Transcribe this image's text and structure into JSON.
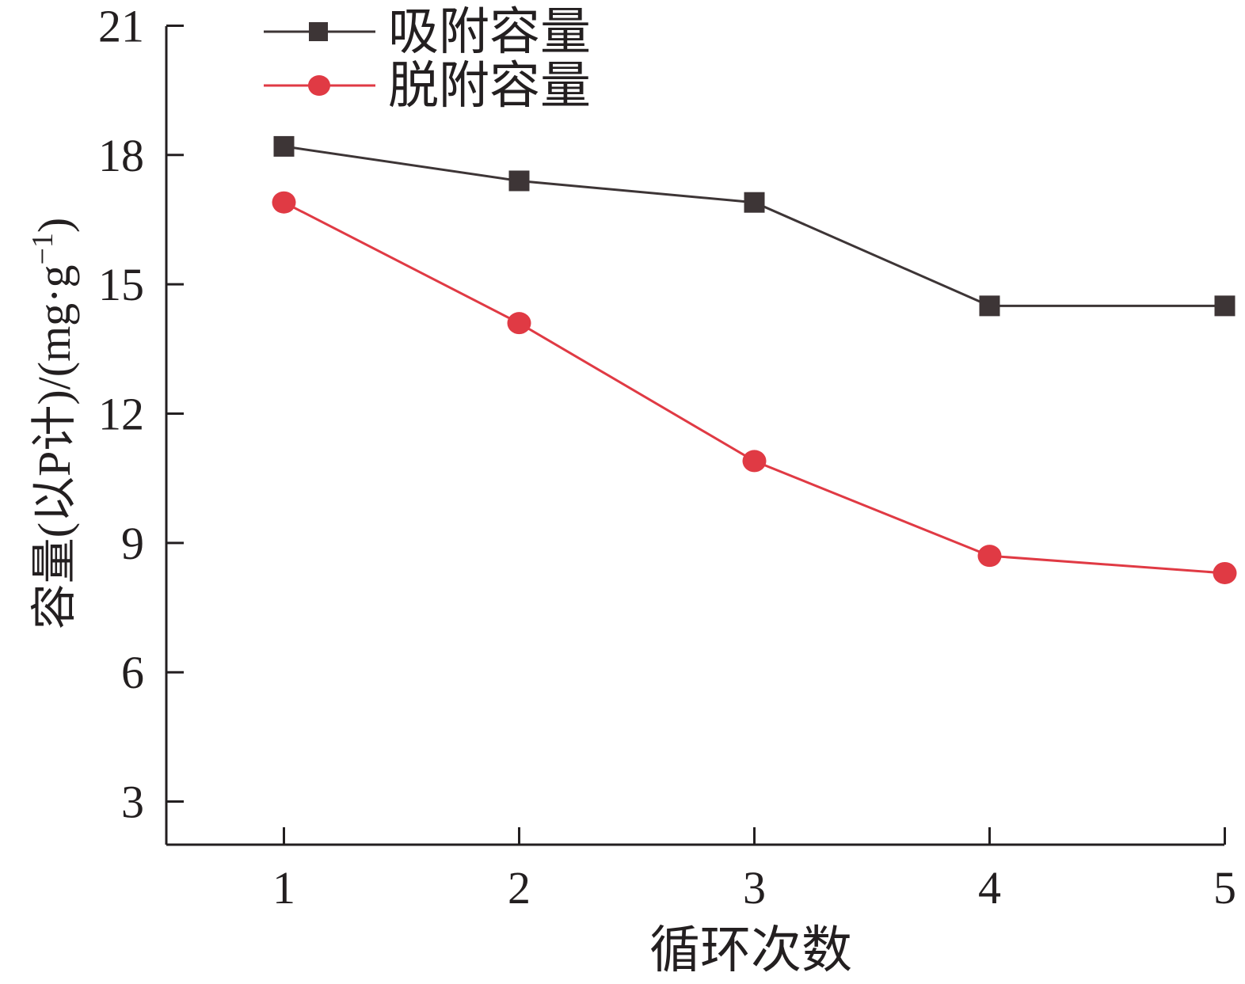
{
  "chart_data": {
    "type": "line",
    "title": "",
    "xlabel": "循环次数",
    "ylabel_main": "容量(以P计)/(mg·g",
    "ylabel_sup": "−1",
    "ylabel_close": ")",
    "x": [
      1,
      2,
      3,
      4,
      5
    ],
    "x_ticks": [
      "1",
      "2",
      "3",
      "4",
      "5"
    ],
    "xlim": [
      0.5,
      5
    ],
    "ylim": [
      2,
      21
    ],
    "y_ticks": [
      3,
      6,
      9,
      12,
      15,
      18,
      21
    ],
    "grid": false,
    "legend_position": "top-left",
    "series": [
      {
        "name": "吸附容量",
        "marker": "square",
        "line_color": "#3d3536",
        "marker_color": "#3d3536",
        "values": [
          18.2,
          17.4,
          16.9,
          14.5,
          14.5
        ]
      },
      {
        "name": "脱附容量",
        "marker": "circle",
        "line_color": "#e03a44",
        "marker_color": "#e03a44",
        "values": [
          16.9,
          14.1,
          10.9,
          8.7,
          8.3
        ]
      }
    ]
  }
}
